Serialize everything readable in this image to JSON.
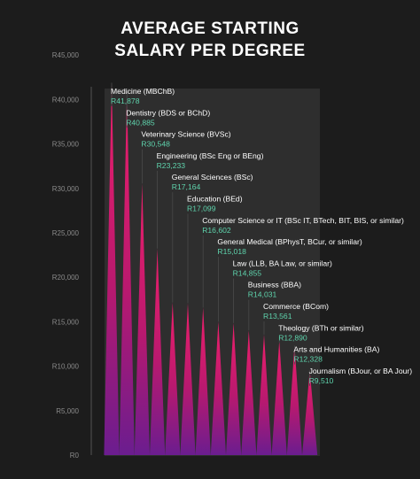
{
  "chart_data": {
    "type": "bar",
    "title_lines": [
      "AVERAGE STARTING",
      "SALARY PER DEGREE"
    ],
    "xlabel": "",
    "ylabel": "",
    "ylim": [
      0,
      50000
    ],
    "y_ticks": [
      {
        "value": 0,
        "label": "R0"
      },
      {
        "value": 5000,
        "label": "R5,000"
      },
      {
        "value": 10000,
        "label": "R10,000"
      },
      {
        "value": 15000,
        "label": "R15,000"
      },
      {
        "value": 20000,
        "label": "R20,000"
      },
      {
        "value": 25000,
        "label": "R25,000"
      },
      {
        "value": 30000,
        "label": "R30,000"
      },
      {
        "value": 35000,
        "label": "R35,000"
      },
      {
        "value": 40000,
        "label": "R40,000"
      },
      {
        "value": 45000,
        "label": "R45,000"
      }
    ],
    "grid": false,
    "legend": "none",
    "categories": [
      "Medicine (MBChB)",
      "Dentistry (BDS or BChD)",
      "Veterinary Science (BVSc)",
      "Engineering (BSc Eng or BEng)",
      "General Sciences (BSc)",
      "Education (BEd)",
      "Computer Science or IT (BSc IT, BTech, BIT, BIS, or similar)",
      "General Medical (BPhysT, BCur, or similar)",
      "Law (LLB, BA Law, or similar)",
      "Business (BBA)",
      "Commerce (BCom)",
      "Theology (BTh or similar)",
      "Arts and Humanities (BA)",
      "Journalism (BJour, or BA Jour)"
    ],
    "values": [
      41878,
      40885,
      30548,
      23233,
      17164,
      17099,
      16602,
      15018,
      14855,
      14031,
      13561,
      12890,
      12328,
      9510
    ],
    "value_labels": [
      "R41,878",
      "R40,885",
      "R30,548",
      "R23,233",
      "R17,164",
      "R17,099",
      "R16,602",
      "R15,018",
      "R14,855",
      "R14,031",
      "R13,561",
      "R12,890",
      "R12,328",
      "R9,510"
    ],
    "colors": {
      "background": "#1c1c1c",
      "title": "#ffffff",
      "label": "#ffffff",
      "value": "#5fd4ad",
      "tick": "#8a8a8a",
      "plot_bg": "#2e2e2e",
      "bar_top": "#ee1f6b",
      "bar_bottom": "#6b1d8f"
    }
  }
}
